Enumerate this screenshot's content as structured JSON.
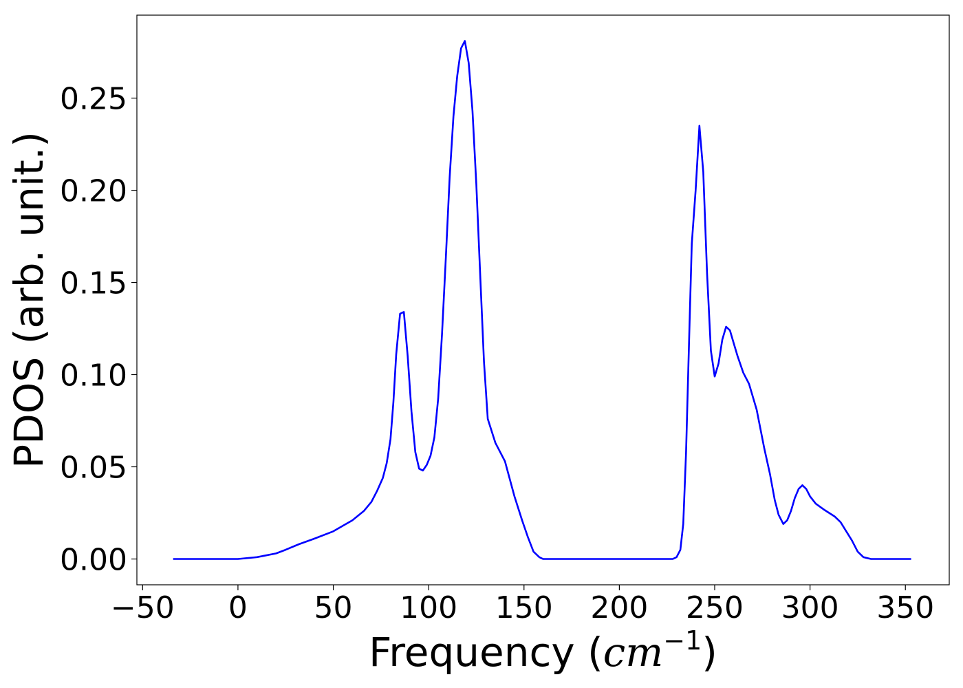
{
  "chart_data": {
    "type": "line",
    "title": "",
    "xlabel": "Frequency (cm",
    "xlabel_italic": "cm",
    "xlabel_sup": "−1",
    "xlabel_close": ")",
    "xlabel_open": "Frequency (",
    "ylabel": "PDOS (arb. unit.)",
    "xlim": [
      -53,
      373
    ],
    "ylim": [
      -0.014,
      0.295
    ],
    "xticks": [
      -50,
      0,
      50,
      100,
      150,
      200,
      250,
      300,
      350
    ],
    "xtick_labels": [
      "−50",
      "0",
      "50",
      "100",
      "150",
      "200",
      "250",
      "300",
      "350"
    ],
    "yticks": [
      0.0,
      0.05,
      0.1,
      0.15,
      0.2,
      0.25
    ],
    "ytick_labels": [
      "0.00",
      "0.05",
      "0.10",
      "0.15",
      "0.20",
      "0.25"
    ],
    "grid": false,
    "legend": "none",
    "series": [
      {
        "color": "#0000ff",
        "x": [
          -34,
          0,
          10,
          20,
          25,
          32,
          40,
          50,
          60,
          66,
          70,
          73,
          76,
          78,
          80,
          81.5,
          83,
          85,
          87,
          89,
          91,
          93,
          95,
          97,
          99,
          101,
          103,
          105,
          107,
          109,
          111,
          113,
          115,
          117,
          119,
          121,
          123,
          125,
          127,
          129,
          131,
          135,
          140,
          145,
          149,
          152,
          155,
          158,
          160,
          200,
          228,
          230,
          232,
          233.5,
          235,
          236.5,
          238,
          240,
          242,
          244,
          246,
          248,
          250,
          252,
          254,
          256,
          258,
          260,
          262,
          265,
          268,
          272,
          276,
          279,
          281.5,
          283.5,
          286,
          288,
          290,
          292,
          294,
          296,
          298,
          300,
          303,
          307,
          310,
          313,
          316,
          319,
          322,
          325,
          328,
          332,
          353
        ],
        "y": [
          0.0,
          0.0,
          0.001,
          0.003,
          0.005,
          0.008,
          0.011,
          0.015,
          0.021,
          0.026,
          0.031,
          0.037,
          0.044,
          0.052,
          0.065,
          0.085,
          0.111,
          0.133,
          0.134,
          0.11,
          0.08,
          0.058,
          0.049,
          0.048,
          0.051,
          0.056,
          0.066,
          0.087,
          0.122,
          0.163,
          0.207,
          0.24,
          0.262,
          0.277,
          0.281,
          0.269,
          0.243,
          0.203,
          0.155,
          0.107,
          0.076,
          0.063,
          0.053,
          0.034,
          0.021,
          0.012,
          0.004,
          0.001,
          0.0,
          0.0,
          0.0,
          0.001,
          0.005,
          0.019,
          0.058,
          0.116,
          0.171,
          0.2,
          0.235,
          0.21,
          0.155,
          0.113,
          0.099,
          0.106,
          0.119,
          0.126,
          0.124,
          0.117,
          0.11,
          0.101,
          0.095,
          0.081,
          0.06,
          0.046,
          0.032,
          0.024,
          0.019,
          0.021,
          0.026,
          0.033,
          0.038,
          0.04,
          0.038,
          0.034,
          0.03,
          0.027,
          0.025,
          0.023,
          0.02,
          0.015,
          0.01,
          0.004,
          0.001,
          0.0,
          0.0
        ]
      }
    ]
  }
}
